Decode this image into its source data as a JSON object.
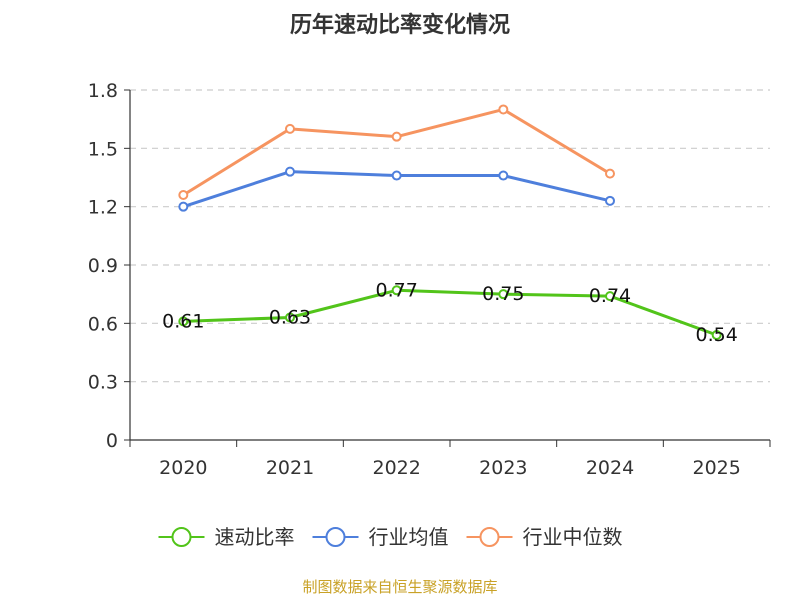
{
  "chart_data": {
    "type": "line",
    "title": "历年速动比率变化情况",
    "categories": [
      "2020",
      "2021",
      "2022",
      "2023",
      "2024",
      "2025"
    ],
    "ylim": [
      0,
      1.8
    ],
    "yticks": [
      "0",
      "0.3",
      "0.6",
      "0.9",
      "1.2",
      "1.5",
      "1.8"
    ],
    "grid": true,
    "legend_position": "bottom",
    "series": [
      {
        "name": "速动比率",
        "color": "#52c41a",
        "values": [
          0.61,
          0.63,
          0.77,
          0.75,
          0.74,
          0.54
        ],
        "labels": [
          "0.61",
          "0.63",
          "0.77",
          "0.75",
          "0.74",
          "0.54"
        ],
        "show_labels": true
      },
      {
        "name": "行业均值",
        "color": "#4e7fdc",
        "values": [
          1.2,
          1.38,
          1.36,
          1.36,
          1.23,
          null
        ],
        "show_labels": false
      },
      {
        "name": "行业中位数",
        "color": "#f69460",
        "values": [
          1.26,
          1.6,
          1.56,
          1.7,
          1.37,
          null
        ],
        "show_labels": false
      }
    ],
    "source": "制图数据来自恒生聚源数据库"
  }
}
